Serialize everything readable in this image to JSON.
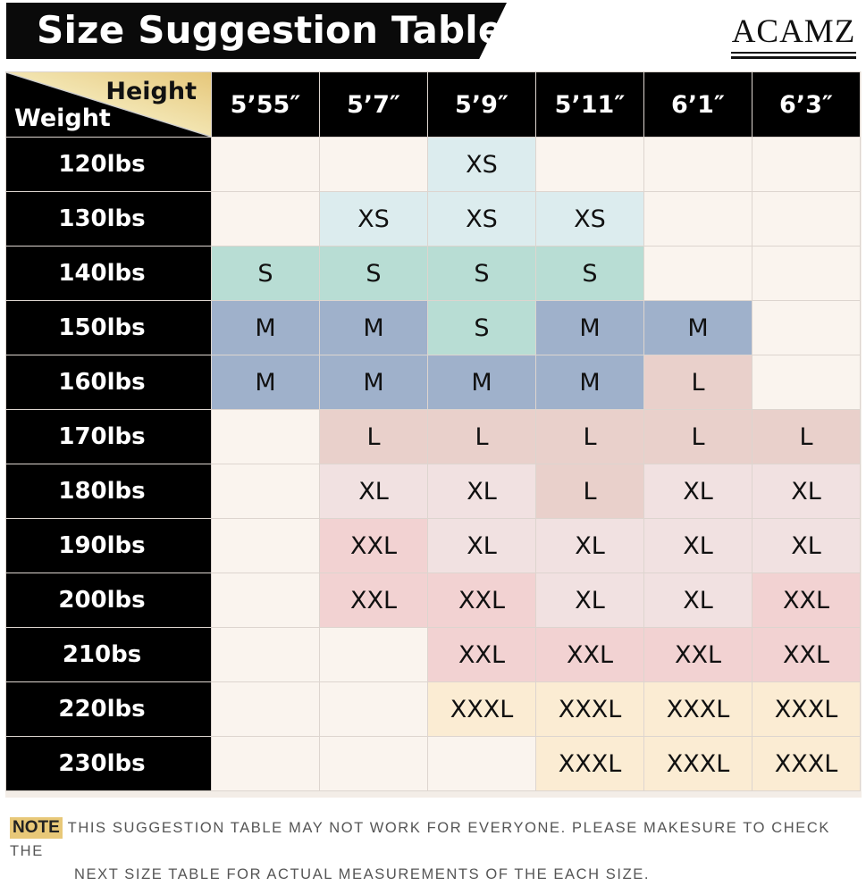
{
  "title": "Size Suggestion Table",
  "brand": "ACAMZ",
  "table": {
    "corner_top": "Height",
    "corner_bottom": "Weight",
    "heights": [
      "5’55″",
      "5’7″",
      "5’9″",
      "5’11″",
      "6’1″",
      "6’3″"
    ],
    "rows": [
      {
        "weight": "120lbs",
        "sizes": [
          "",
          "",
          "XS",
          "",
          "",
          ""
        ]
      },
      {
        "weight": "130lbs",
        "sizes": [
          "",
          "XS",
          "XS",
          "XS",
          "",
          ""
        ]
      },
      {
        "weight": "140lbs",
        "sizes": [
          "S",
          "S",
          "S",
          "S",
          "",
          ""
        ]
      },
      {
        "weight": "150lbs",
        "sizes": [
          "M",
          "M",
          "S",
          "M",
          "M",
          ""
        ]
      },
      {
        "weight": "160lbs",
        "sizes": [
          "M",
          "M",
          "M",
          "M",
          "L",
          ""
        ]
      },
      {
        "weight": "170lbs",
        "sizes": [
          "",
          "L",
          "L",
          "L",
          "L",
          "L"
        ]
      },
      {
        "weight": "180lbs",
        "sizes": [
          "",
          "XL",
          "XL",
          "L",
          "XL",
          "XL"
        ]
      },
      {
        "weight": "190lbs",
        "sizes": [
          "",
          "XXL",
          "XL",
          "XL",
          "XL",
          "XL"
        ]
      },
      {
        "weight": "200lbs",
        "sizes": [
          "",
          "XXL",
          "XXL",
          "XL",
          "XL",
          "XXL"
        ]
      },
      {
        "weight": "210bs",
        "sizes": [
          "",
          "",
          "XXL",
          "XXL",
          "XXL",
          "XXL"
        ]
      },
      {
        "weight": "220lbs",
        "sizes": [
          "",
          "",
          "XXXL",
          "XXXL",
          "XXXL",
          "XXXL"
        ]
      },
      {
        "weight": "230lbs",
        "sizes": [
          "",
          "",
          "",
          "XXXL",
          "XXXL",
          "XXXL"
        ]
      }
    ]
  },
  "size_colors": {
    "": "#faf4ee",
    "XS": "#dcecee",
    "S": "#b8ddd4",
    "M": "#9fb1cb",
    "L": "#e9d0cb",
    "XL": "#f1e1e1",
    "XXL": "#f2d2d2",
    "XXXL": "#fbecd3"
  },
  "note": {
    "tag": "NOTE",
    "line1": "THIS SUGGESTION TABLE MAY NOT WORK FOR EVERYONE. PLEASE MAKESURE TO CHECK THE",
    "line2": "NEXT SIZE TABLE FOR ACTUAL MEASUREMENTS OF THE EACH SIZE."
  }
}
